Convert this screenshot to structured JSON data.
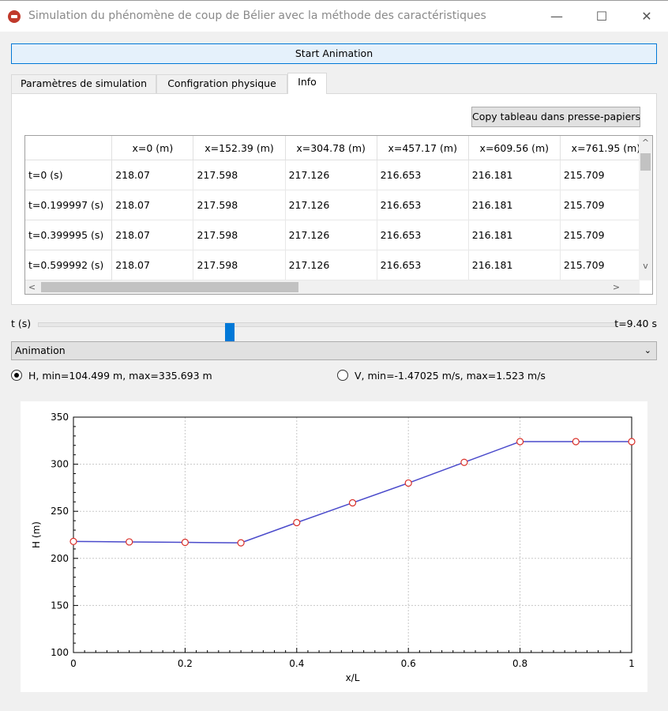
{
  "window": {
    "title": "Simulation du phénomène de coup de Bélier avec la méthode des caractéristiques",
    "minimize": "—",
    "maximize": "☐",
    "close": "✕"
  },
  "start_button": "Start Animation",
  "tabs": [
    {
      "label": "Paramètres de simulation",
      "active": false
    },
    {
      "label": "Configration physique",
      "active": false
    },
    {
      "label": "Info",
      "active": true
    }
  ],
  "copy_button": "Copy tableau dans presse-papiers",
  "table": {
    "columns": [
      "x=0 (m)",
      "x=152.39 (m)",
      "x=304.78 (m)",
      "x=457.17 (m)",
      "x=609.56 (m)",
      "x=761.95 (m)"
    ],
    "rows": [
      {
        "label": "t=0 (s)",
        "cells": [
          "218.07",
          "217.598",
          "217.126",
          "216.653",
          "216.181",
          "215.709"
        ]
      },
      {
        "label": "t=0.199997 (s)",
        "cells": [
          "218.07",
          "217.598",
          "217.126",
          "216.653",
          "216.181",
          "215.709"
        ]
      },
      {
        "label": "t=0.399995 (s)",
        "cells": [
          "218.07",
          "217.598",
          "217.126",
          "216.653",
          "216.181",
          "215.709"
        ]
      },
      {
        "label": "t=0.599992 (s)",
        "cells": [
          "218.07",
          "217.598",
          "217.126",
          "216.653",
          "216.181",
          "215.709"
        ]
      }
    ]
  },
  "scroll": {
    "up": "^",
    "down": "v",
    "left": "<",
    "right": ">"
  },
  "slider": {
    "label": "t (s)",
    "value_text": "t=9.40 s",
    "fraction": 0.33
  },
  "select": {
    "value": "Animation",
    "chevron": "⌄"
  },
  "radios": [
    {
      "label": "H, min=104.499 m, max=335.693 m",
      "checked": true
    },
    {
      "label": "V, min=-1.47025 m/s, max=1.523 m/s",
      "checked": false
    }
  ],
  "chart_data": {
    "type": "line",
    "xlabel": "x/L",
    "ylabel": "H (m)",
    "xlim": [
      0,
      1
    ],
    "ylim": [
      100,
      350
    ],
    "xticks": [
      "0",
      "0.2",
      "0.4",
      "0.6",
      "0.8",
      "1"
    ],
    "yticks": [
      "100",
      "150",
      "200",
      "250",
      "300",
      "350"
    ],
    "grid": true,
    "line_color": "#4a4acb",
    "marker_color": "#d9302a",
    "series": [
      {
        "x": [
          0,
          0.1,
          0.2,
          0.3,
          0.4,
          0.5,
          0.6,
          0.7,
          0.8,
          0.9,
          1.0
        ],
        "values": [
          218,
          217.5,
          217,
          216.5,
          238,
          259,
          280,
          302,
          324,
          324,
          324
        ]
      }
    ]
  }
}
